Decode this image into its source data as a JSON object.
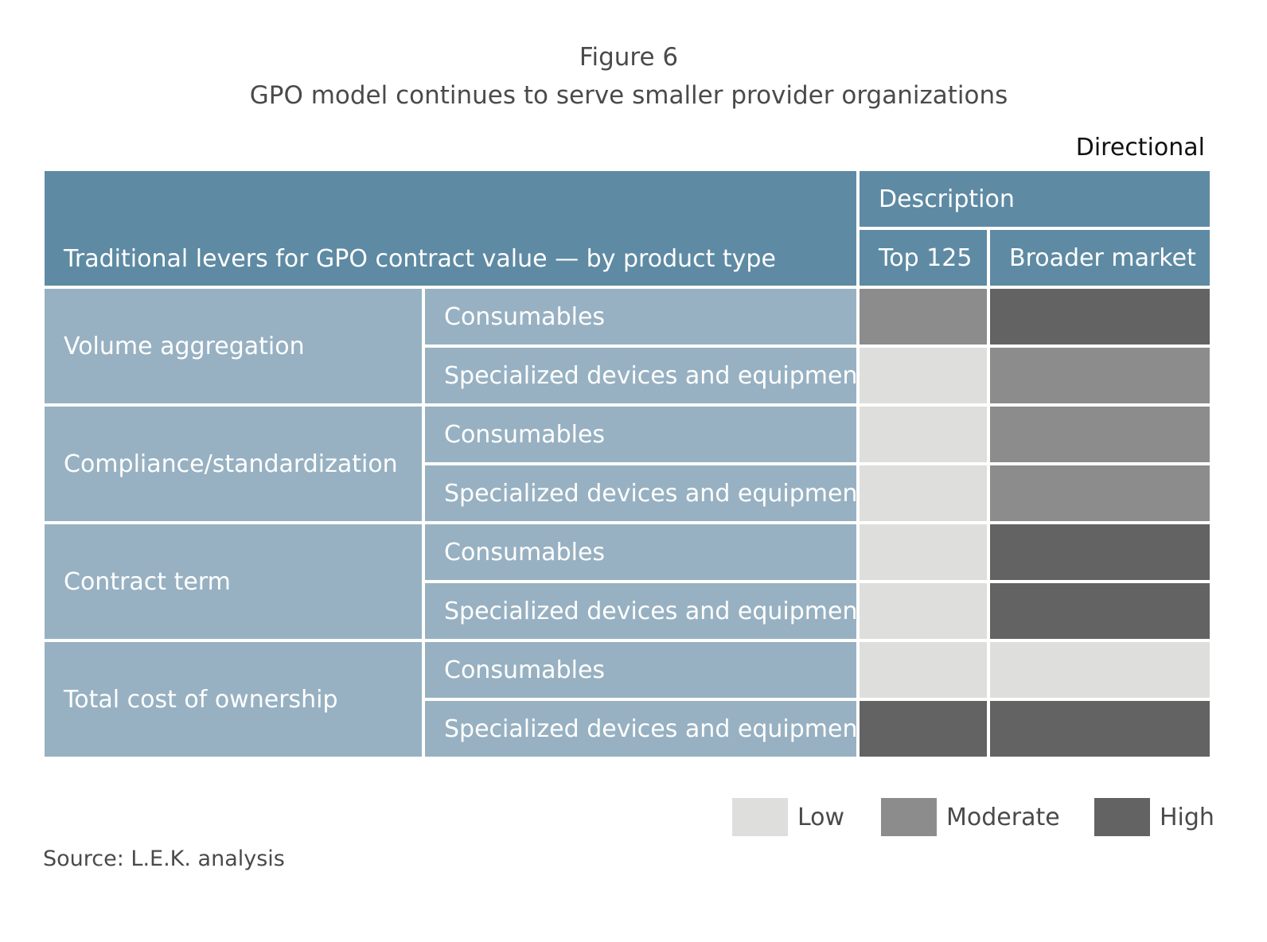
{
  "figure_label": "Figure 6",
  "title": "GPO model continues to serve smaller provider organizations",
  "note": "Directional",
  "source": "Source: L.E.K. analysis",
  "colors": {
    "header": "#5e8aa3",
    "row": "#97b1c2",
    "Low": "#dededd",
    "Moderate": "#8c8c8c",
    "High": "#626362"
  },
  "chart_data": {
    "type": "table",
    "header": {
      "row_label": "Traditional levers for GPO contract value — by product type",
      "group": "Description",
      "columns": [
        "Top 125",
        "Broader market"
      ]
    },
    "levers": [
      {
        "name": "Volume aggregation",
        "rows": [
          {
            "product": "Consumables",
            "values": [
              "Moderate",
              "High"
            ]
          },
          {
            "product": "Specialized devices and equipment",
            "values": [
              "Low",
              "Moderate"
            ]
          }
        ]
      },
      {
        "name": "Compliance/standardization",
        "rows": [
          {
            "product": "Consumables",
            "values": [
              "Low",
              "Moderate"
            ]
          },
          {
            "product": "Specialized devices and equipment",
            "values": [
              "Low",
              "Moderate"
            ]
          }
        ]
      },
      {
        "name": "Contract term",
        "rows": [
          {
            "product": "Consumables",
            "values": [
              "Low",
              "High"
            ]
          },
          {
            "product": "Specialized devices and equipment",
            "values": [
              "Low",
              "High"
            ]
          }
        ]
      },
      {
        "name": "Total cost of ownership",
        "rows": [
          {
            "product": "Consumables",
            "values": [
              "Low",
              "Low"
            ]
          },
          {
            "product": "Specialized devices and equipment",
            "values": [
              "High",
              "High"
            ]
          }
        ]
      }
    ],
    "legend": [
      "Low",
      "Moderate",
      "High"
    ]
  }
}
